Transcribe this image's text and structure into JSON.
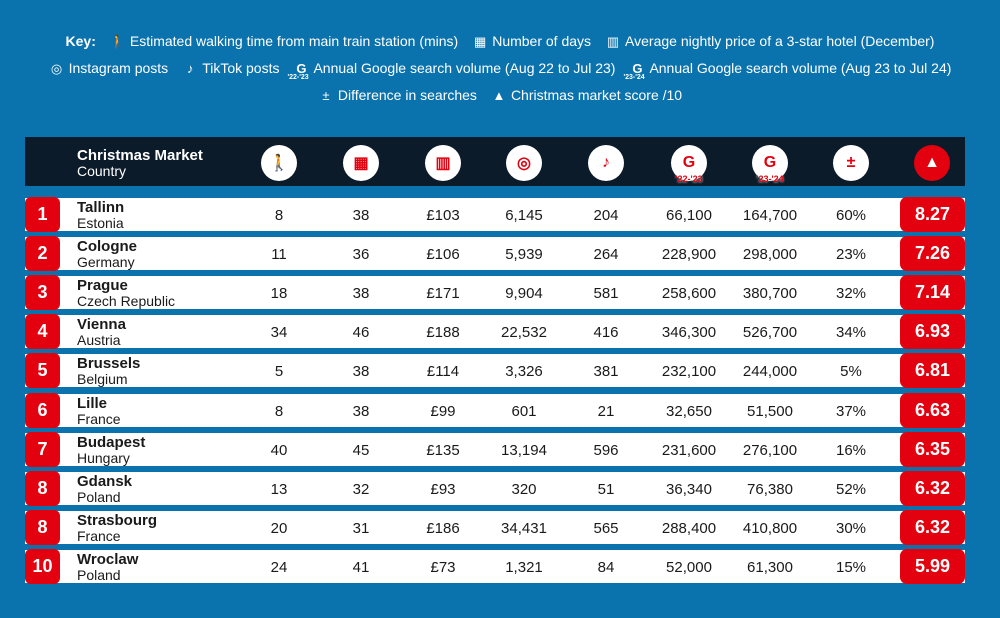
{
  "key": {
    "label": "Key:",
    "items": [
      {
        "icon": "walking-icon",
        "glyph": "🚶",
        "text": "Estimated walking time from main train station (mins)"
      },
      {
        "icon": "calendar-icon",
        "glyph": "▦",
        "text": "Number of days"
      },
      {
        "icon": "hotel-icon",
        "glyph": "▥",
        "text": "Average nightly price of a 3-star hotel (December)"
      },
      {
        "icon": "instagram-icon",
        "glyph": "◎",
        "text": "Instagram posts"
      },
      {
        "icon": "tiktok-icon",
        "glyph": "♪",
        "text": "TikTok posts"
      },
      {
        "icon": "google-icon",
        "glyph": "G",
        "sub": "'22-'23",
        "text": "Annual Google search volume (Aug 22 to Jul 23)"
      },
      {
        "icon": "google-icon",
        "glyph": "G",
        "sub": "'23-'24",
        "text": "Annual Google search volume (Aug 23 to Jul 24)"
      },
      {
        "icon": "plus-minus-icon",
        "glyph": "±",
        "text": "Difference in searches"
      },
      {
        "icon": "christmas-tree-icon",
        "glyph": "▲",
        "text": "Christmas market score /10"
      }
    ]
  },
  "header": {
    "title": "Christmas Market",
    "subtitle": "Country",
    "g1_sub": "'22-'23",
    "g2_sub": "'23-'24"
  },
  "colors": {
    "accent": "#e3000f",
    "background": "#0a73ae",
    "header": "#0b1b2a"
  },
  "rows": [
    {
      "rank": "1",
      "city": "Tallinn",
      "country": "Estonia",
      "walk": "8",
      "days": "38",
      "hotel": "£103",
      "instagram": "6,145",
      "tiktok": "204",
      "g2223": "66,100",
      "g2324": "164,700",
      "diff": "60%",
      "score": "8.27"
    },
    {
      "rank": "2",
      "city": "Cologne",
      "country": "Germany",
      "walk": "11",
      "days": "36",
      "hotel": "£106",
      "instagram": "5,939",
      "tiktok": "264",
      "g2223": "228,900",
      "g2324": "298,000",
      "diff": "23%",
      "score": "7.26"
    },
    {
      "rank": "3",
      "city": "Prague",
      "country": "Czech Republic",
      "walk": "18",
      "days": "38",
      "hotel": "£171",
      "instagram": "9,904",
      "tiktok": "581",
      "g2223": "258,600",
      "g2324": "380,700",
      "diff": "32%",
      "score": "7.14"
    },
    {
      "rank": "4",
      "city": "Vienna",
      "country": "Austria",
      "walk": "34",
      "days": "46",
      "hotel": "£188",
      "instagram": "22,532",
      "tiktok": "416",
      "g2223": "346,300",
      "g2324": "526,700",
      "diff": "34%",
      "score": "6.93"
    },
    {
      "rank": "5",
      "city": "Brussels",
      "country": "Belgium",
      "walk": "5",
      "days": "38",
      "hotel": "£114",
      "instagram": "3,326",
      "tiktok": "381",
      "g2223": "232,100",
      "g2324": "244,000",
      "diff": "5%",
      "score": "6.81"
    },
    {
      "rank": "6",
      "city": "Lille",
      "country": "France",
      "walk": "8",
      "days": "38",
      "hotel": "£99",
      "instagram": "601",
      "tiktok": "21",
      "g2223": "32,650",
      "g2324": "51,500",
      "diff": "37%",
      "score": "6.63"
    },
    {
      "rank": "7",
      "city": "Budapest",
      "country": "Hungary",
      "walk": "40",
      "days": "45",
      "hotel": "£135",
      "instagram": "13,194",
      "tiktok": "596",
      "g2223": "231,600",
      "g2324": "276,100",
      "diff": "16%",
      "score": "6.35"
    },
    {
      "rank": "8",
      "city": "Gdansk",
      "country": "Poland",
      "walk": "13",
      "days": "32",
      "hotel": "£93",
      "instagram": "320",
      "tiktok": "51",
      "g2223": "36,340",
      "g2324": "76,380",
      "diff": "52%",
      "score": "6.32"
    },
    {
      "rank": "8",
      "city": "Strasbourg",
      "country": "France",
      "walk": "20",
      "days": "31",
      "hotel": "£186",
      "instagram": "34,431",
      "tiktok": "565",
      "g2223": "288,400",
      "g2324": "410,800",
      "diff": "30%",
      "score": "6.32"
    },
    {
      "rank": "10",
      "city": "Wroclaw",
      "country": "Poland",
      "walk": "24",
      "days": "41",
      "hotel": "£73",
      "instagram": "1,321",
      "tiktok": "84",
      "g2223": "52,000",
      "g2324": "61,300",
      "diff": "15%",
      "score": "5.99"
    }
  ]
}
